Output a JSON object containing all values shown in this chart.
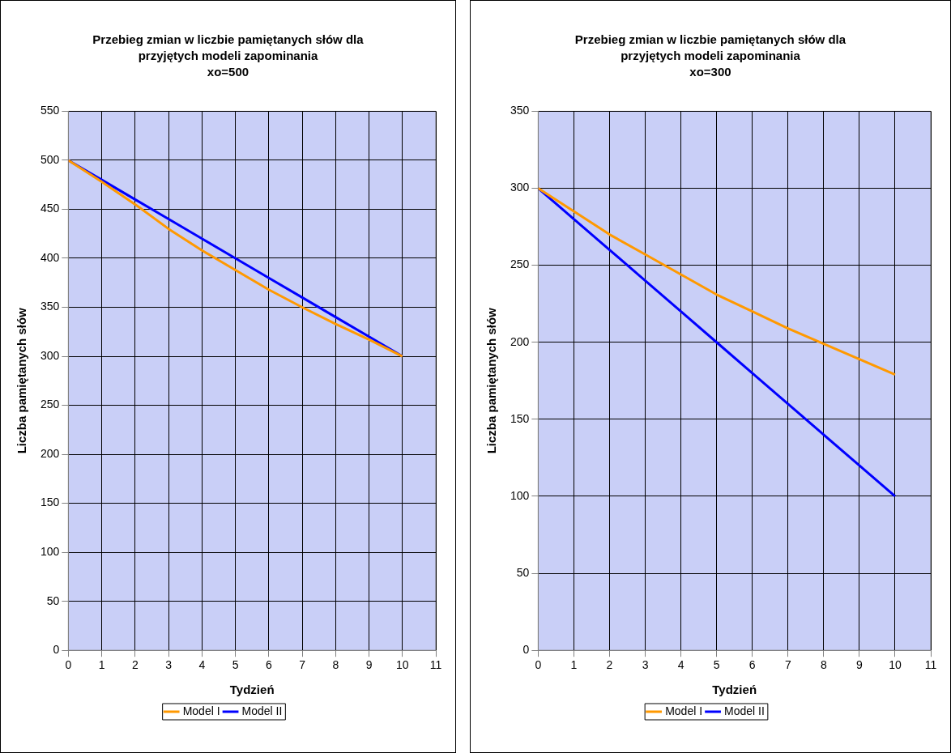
{
  "chart_data": [
    {
      "type": "line",
      "title": "Przebieg zmian w liczbie pamiętanych słów dla przyjętych modeli zapominania",
      "subtitle": "xo=500",
      "xlabel": "Tydzień",
      "ylabel": "Liczba pamiętanych słów",
      "x": [
        0,
        1,
        2,
        3,
        4,
        5,
        6,
        7,
        8,
        9,
        10
      ],
      "xlim": [
        0,
        11
      ],
      "xticks": [
        0,
        1,
        2,
        3,
        4,
        5,
        6,
        7,
        8,
        9,
        10,
        11
      ],
      "ylim": [
        0,
        550
      ],
      "yticks": [
        0,
        50,
        100,
        150,
        200,
        250,
        300,
        350,
        400,
        450,
        500,
        550
      ],
      "grid": true,
      "legend": "bottom",
      "marker": "none",
      "line_style": "solid",
      "series": [
        {
          "name": "Model I",
          "color": "#ff9900",
          "values": [
            500,
            478,
            455,
            430,
            408,
            388,
            368,
            350,
            333,
            317,
            300
          ]
        },
        {
          "name": "Model II",
          "color": "#0000ff",
          "values": [
            500,
            480,
            460,
            440,
            420,
            400,
            380,
            360,
            340,
            320,
            300
          ]
        }
      ]
    },
    {
      "type": "line",
      "title": "Przebieg zmian w liczbie pamiętanych słów dla przyjętych modeli zapominania",
      "subtitle": "xo=300",
      "xlabel": "Tydzień",
      "ylabel": "Liczba pamiętanych słów",
      "x": [
        0,
        1,
        2,
        3,
        4,
        5,
        6,
        7,
        8,
        9,
        10
      ],
      "xlim": [
        0,
        11
      ],
      "xticks": [
        0,
        1,
        2,
        3,
        4,
        5,
        6,
        7,
        8,
        9,
        10,
        11
      ],
      "ylim": [
        0,
        350
      ],
      "yticks": [
        0,
        50,
        100,
        150,
        200,
        250,
        300,
        350
      ],
      "grid": true,
      "legend": "bottom",
      "marker": "none",
      "line_style": "solid",
      "series": [
        {
          "name": "Model I",
          "color": "#ff9900",
          "values": [
            300,
            285,
            270,
            257,
            244,
            231,
            220,
            209,
            199,
            189,
            179
          ]
        },
        {
          "name": "Model II",
          "color": "#0000ff",
          "values": [
            300,
            280,
            260,
            240,
            220,
            200,
            180,
            160,
            140,
            120,
            100
          ]
        }
      ]
    }
  ]
}
